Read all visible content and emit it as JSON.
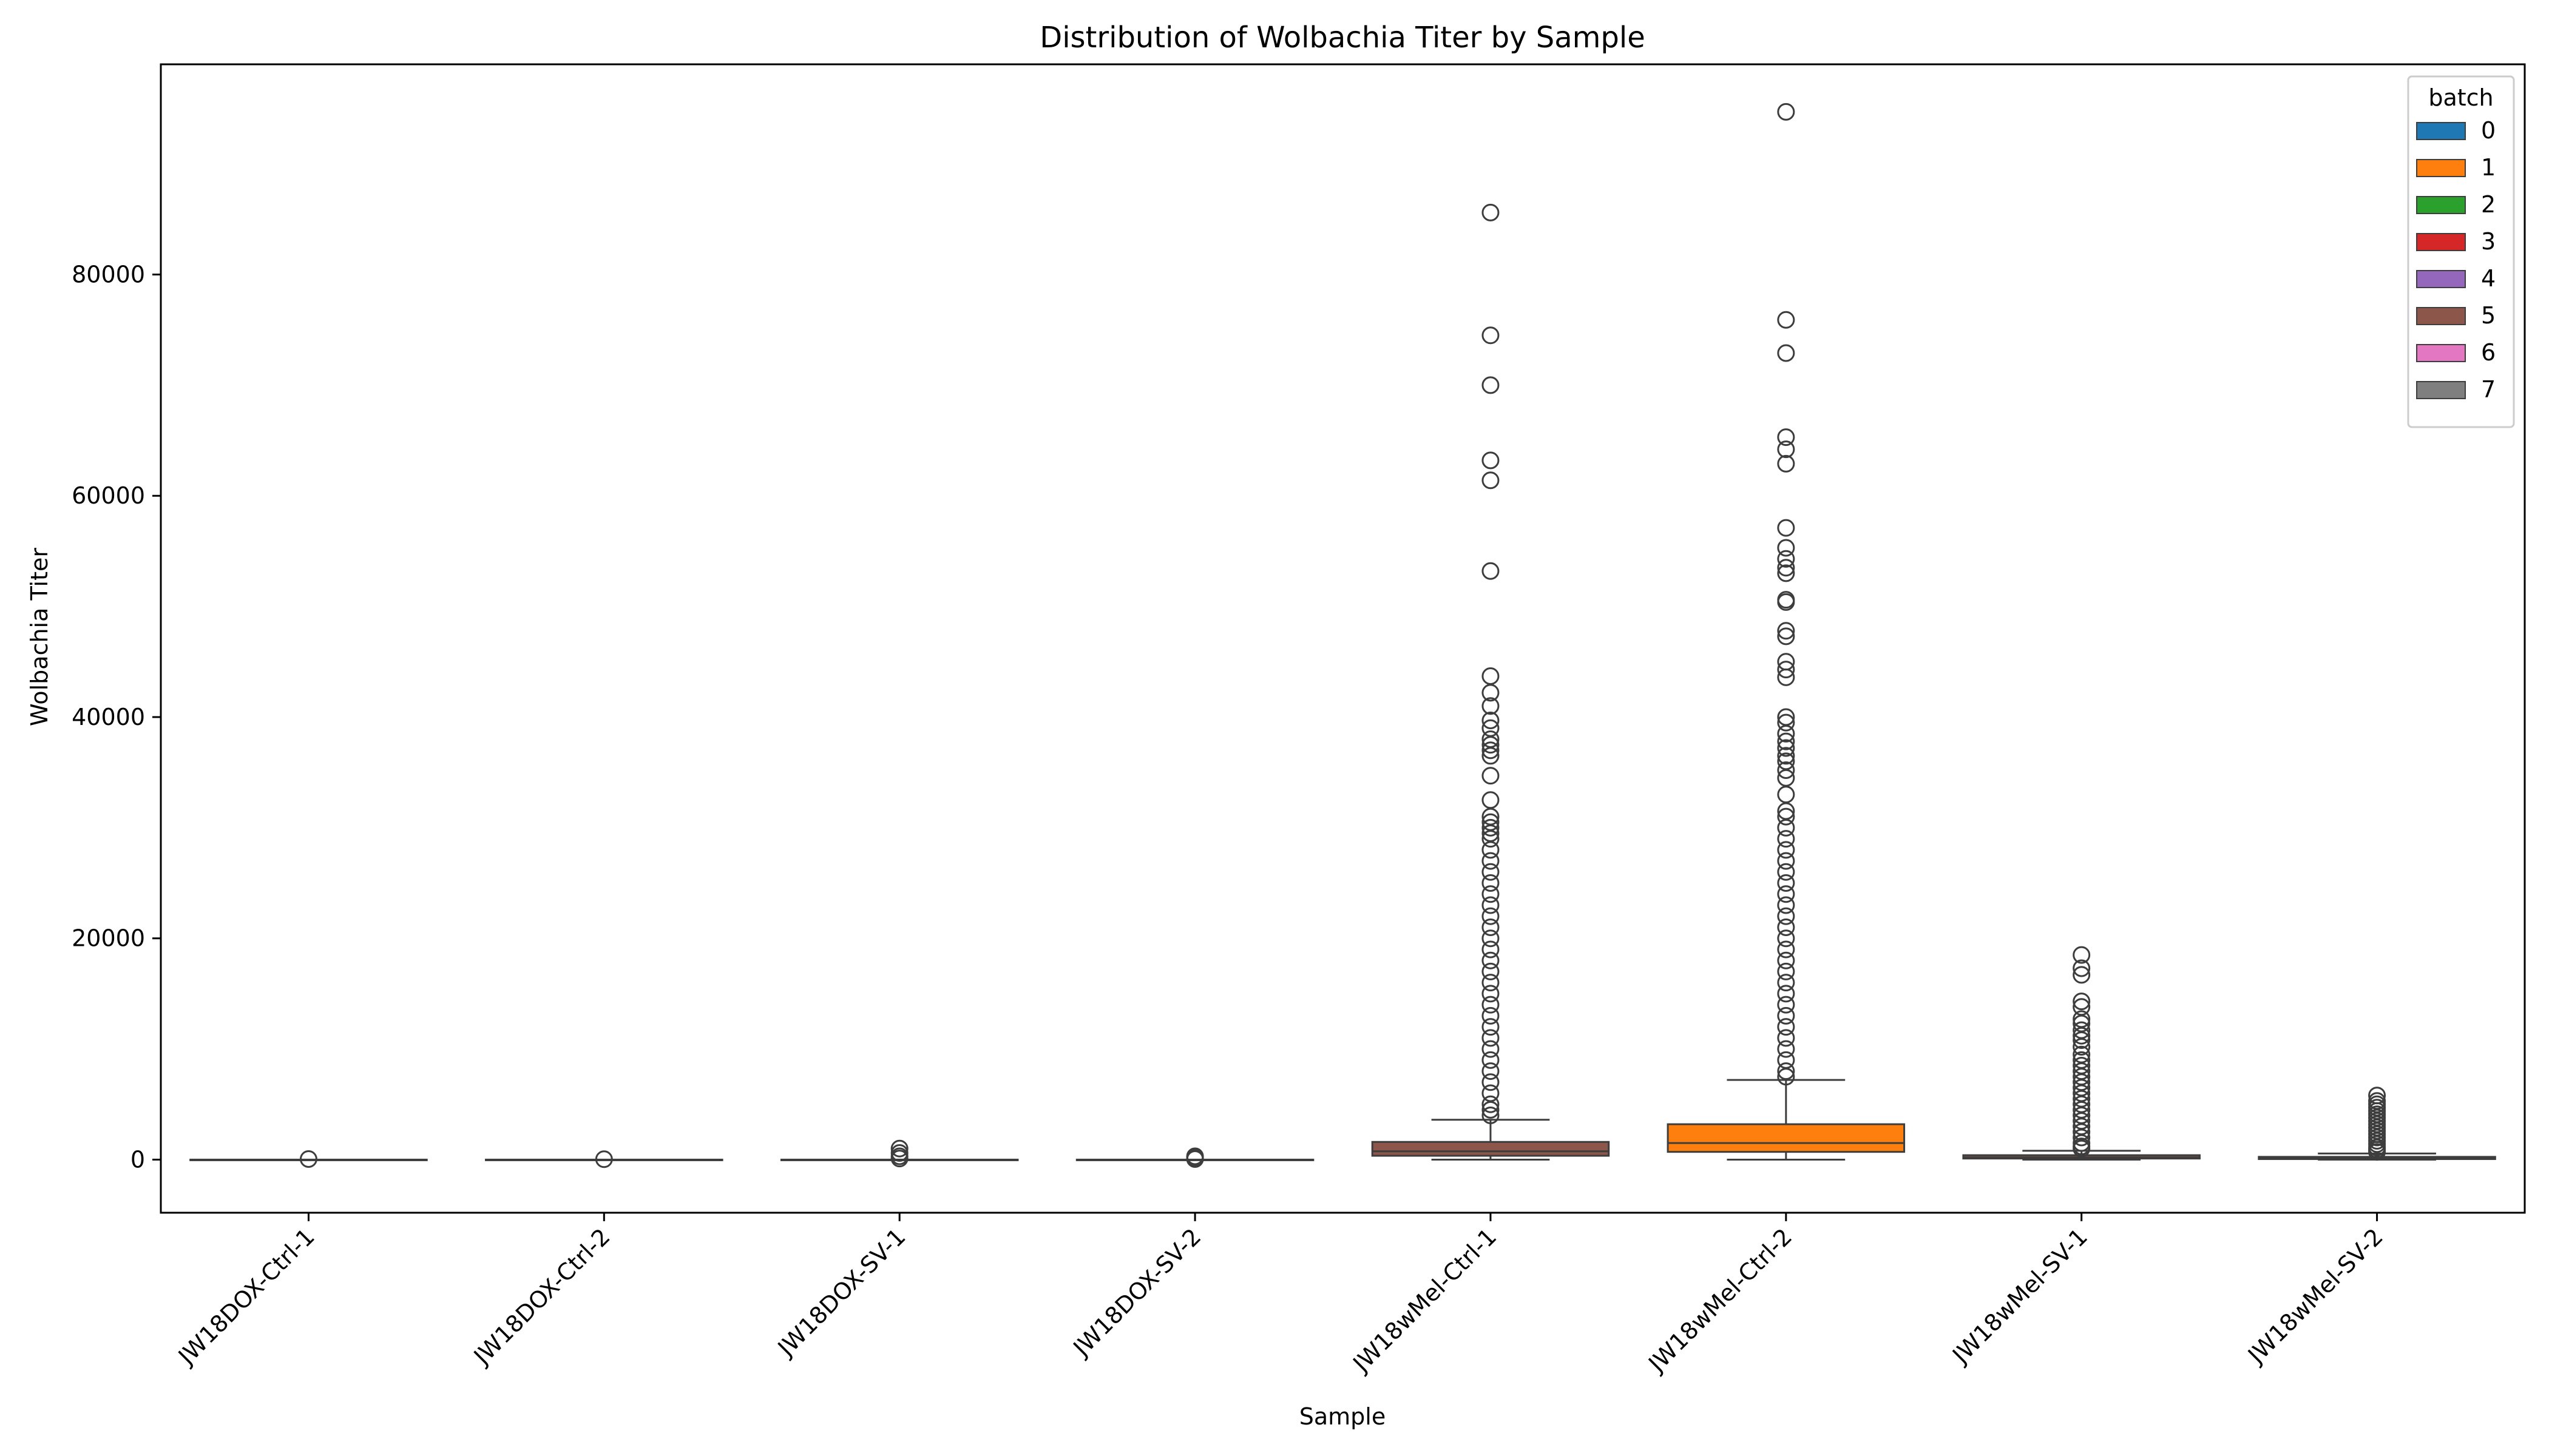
{
  "chart_data": {
    "type": "box",
    "title": "Distribution of Wolbachia Titer by Sample",
    "xlabel": "Sample",
    "ylabel": "Wolbachia Titer",
    "ylim": [
      -4800,
      99000
    ],
    "yticks": [
      0,
      20000,
      40000,
      60000,
      80000
    ],
    "ytick_labels": [
      "0",
      "20000",
      "40000",
      "60000",
      "80000"
    ],
    "grid": false,
    "legend": {
      "title": "batch",
      "position": "top-right",
      "entries": [
        {
          "label": "0",
          "color": "#1f77b4"
        },
        {
          "label": "1",
          "color": "#ff7f0e"
        },
        {
          "label": "2",
          "color": "#2ca02c"
        },
        {
          "label": "3",
          "color": "#d62728"
        },
        {
          "label": "4",
          "color": "#9467bd"
        },
        {
          "label": "5",
          "color": "#8c564b"
        },
        {
          "label": "6",
          "color": "#e377c2"
        },
        {
          "label": "7",
          "color": "#7f7f7f"
        }
      ]
    },
    "categories": [
      "JW18DOX-Ctrl-1",
      "JW18DOX-Ctrl-2",
      "JW18DOX-SV-1",
      "JW18DOX-SV-2",
      "JW18wMel-Ctrl-1",
      "JW18wMel-Ctrl-2",
      "JW18wMel-SV-1",
      "JW18wMel-SV-2"
    ],
    "boxes": [
      {
        "sample": "JW18DOX-Ctrl-1",
        "batch": "0",
        "whisker_low": 0,
        "q1": 0,
        "median": 0,
        "q3": 0,
        "whisker_high": 0,
        "outliers": [
          50
        ]
      },
      {
        "sample": "JW18DOX-Ctrl-2",
        "batch": "0",
        "whisker_low": 0,
        "q1": 0,
        "median": 0,
        "q3": 0,
        "whisker_high": 0,
        "outliers": [
          40
        ]
      },
      {
        "sample": "JW18DOX-SV-1",
        "batch": "0",
        "whisker_low": 0,
        "q1": 0,
        "median": 0,
        "q3": 0,
        "whisker_high": 0,
        "outliers": [
          1000,
          600,
          300,
          100
        ]
      },
      {
        "sample": "JW18DOX-SV-2",
        "batch": "0",
        "whisker_low": 0,
        "q1": 0,
        "median": 0,
        "q3": 0,
        "whisker_high": 0,
        "outliers": [
          300,
          150,
          50
        ]
      },
      {
        "sample": "JW18wMel-Ctrl-1",
        "batch": "5",
        "whisker_low": 0,
        "q1": 350,
        "median": 750,
        "q3": 1600,
        "whisker_high": 3600,
        "outliers": [
          85600,
          74500,
          70000,
          63200,
          61400,
          53200,
          43700,
          42200,
          41000,
          39700,
          39000,
          38000,
          37500,
          37000,
          36500,
          34700,
          32500,
          31000,
          30500,
          30000,
          29500,
          29000,
          28000,
          27000,
          26000,
          25000,
          24000,
          23000,
          22000,
          21000,
          20000,
          19000,
          18000,
          17000,
          16000,
          15000,
          14000,
          13000,
          12000,
          11000,
          10000,
          9000,
          8000,
          7000,
          6000,
          5000,
          4500,
          4000
        ]
      },
      {
        "sample": "JW18wMel-Ctrl-2",
        "batch": "1",
        "whisker_low": 0,
        "q1": 700,
        "median": 1500,
        "q3": 3200,
        "whisker_high": 7200,
        "outliers": [
          94700,
          75900,
          72900,
          65300,
          64200,
          62900,
          57100,
          55300,
          54300,
          53500,
          53000,
          50600,
          50400,
          47800,
          47300,
          45000,
          44300,
          43600,
          40000,
          39500,
          38500,
          37800,
          37200,
          36500,
          36000,
          35200,
          34500,
          33000,
          31500,
          31000,
          30000,
          29000,
          28000,
          27000,
          26000,
          25000,
          24000,
          23000,
          22000,
          21000,
          20000,
          19000,
          18000,
          17000,
          16000,
          15000,
          14000,
          13000,
          12000,
          11000,
          10000,
          9000,
          8000,
          7500
        ]
      },
      {
        "sample": "JW18wMel-SV-1",
        "batch": "5",
        "whisker_low": 0,
        "q1": 100,
        "median": 200,
        "q3": 400,
        "whisker_high": 800,
        "outliers": [
          18500,
          17300,
          16700,
          14300,
          13800,
          12700,
          12300,
          11700,
          11200,
          10800,
          10200,
          9500,
          9000,
          8500,
          8000,
          7500,
          7000,
          6500,
          6000,
          5500,
          5000,
          4500,
          4000,
          3500,
          3000,
          2500,
          2000,
          1500,
          1200,
          1000
        ]
      },
      {
        "sample": "JW18wMel-SV-2",
        "batch": "5",
        "whisker_low": 0,
        "q1": 50,
        "median": 100,
        "q3": 250,
        "whisker_high": 550,
        "outliers": [
          5800,
          5300,
          5000,
          4700,
          4400,
          4100,
          3800,
          3500,
          3200,
          2900,
          2600,
          2300,
          2000,
          1700,
          1400,
          1100,
          900,
          700
        ]
      }
    ]
  }
}
